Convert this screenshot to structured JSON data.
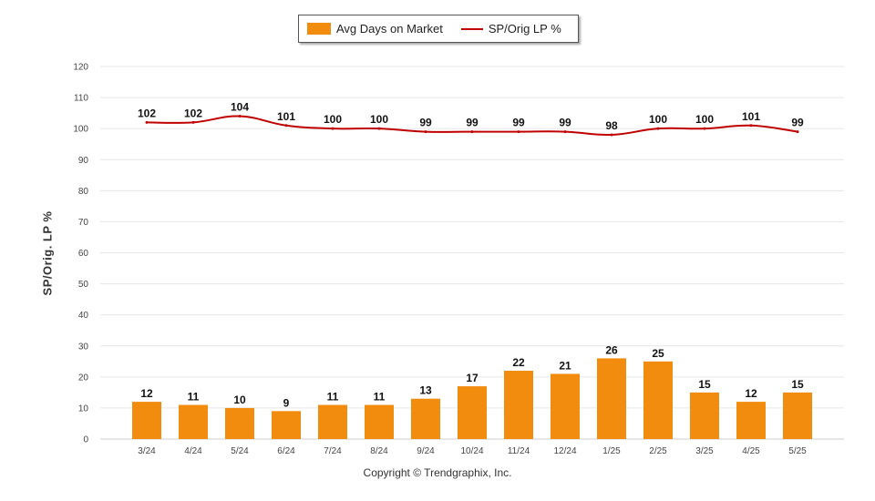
{
  "legend": {
    "bar_label": "Avg Days on Market",
    "line_label": "SP/Orig LP %"
  },
  "ylabel": "SP/Orig. LP %",
  "copyright": "Copyright © Trendgraphix, Inc.",
  "colors": {
    "bar": "#F28C0F",
    "line": "#C00000",
    "grid": "#e6e6e6"
  },
  "chart_data": {
    "type": "bar",
    "categories": [
      "3/24",
      "4/24",
      "5/24",
      "6/24",
      "7/24",
      "8/24",
      "9/24",
      "10/24",
      "11/24",
      "12/24",
      "1/25",
      "2/25",
      "3/25",
      "4/25",
      "5/25"
    ],
    "series": [
      {
        "name": "Avg Days on Market",
        "type": "bar",
        "values": [
          12,
          11,
          10,
          9,
          11,
          11,
          13,
          17,
          22,
          21,
          26,
          25,
          15,
          12,
          15
        ]
      },
      {
        "name": "SP/Orig LP %",
        "type": "line",
        "values": [
          102,
          102,
          104,
          101,
          100,
          100,
          99,
          99,
          99,
          99,
          98,
          100,
          100,
          101,
          99
        ]
      }
    ],
    "ylabel": "SP/Orig. LP %",
    "ylim": [
      0,
      120
    ],
    "yticks": [
      0,
      10,
      20,
      30,
      40,
      50,
      60,
      70,
      80,
      90,
      100,
      110,
      120
    ],
    "grid": true,
    "legend_position": "top-center"
  }
}
